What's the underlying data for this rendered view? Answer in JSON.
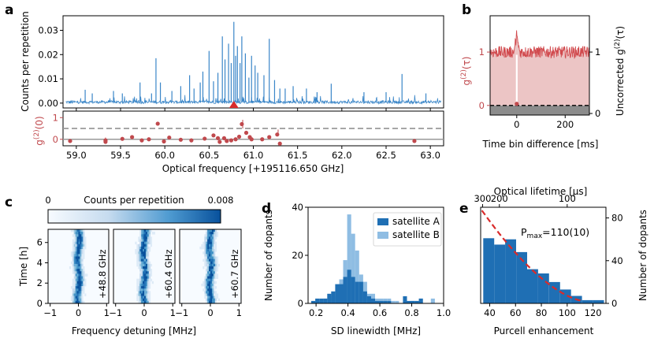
{
  "panels": {
    "a": "a",
    "b": "b",
    "c": "c",
    "d": "d",
    "e": "e"
  },
  "chart_data": [
    {
      "id": "a-top",
      "type": "line",
      "ylabel": "Counts per repetition",
      "ylim": [
        -0.002,
        0.036
      ],
      "xlim": [
        58.85,
        63.15
      ],
      "yticks": [
        "0.00",
        "0.01",
        "0.02",
        "0.03"
      ],
      "yticks_values": [
        0,
        0.01,
        0.02,
        0.03
      ],
      "color": "#3a86c8",
      "marker_x": 60.78,
      "peaks": [
        [
          59.1,
          0.0055
        ],
        [
          59.18,
          0.004
        ],
        [
          59.42,
          0.005
        ],
        [
          59.52,
          0.004
        ],
        [
          59.72,
          0.0085
        ],
        [
          59.85,
          0.004
        ],
        [
          59.9,
          0.0185
        ],
        [
          59.95,
          0.0085
        ],
        [
          60.08,
          0.005
        ],
        [
          60.18,
          0.007
        ],
        [
          60.28,
          0.0115
        ],
        [
          60.33,
          0.006
        ],
        [
          60.4,
          0.0085
        ],
        [
          60.43,
          0.013
        ],
        [
          60.5,
          0.0215
        ],
        [
          60.55,
          0.009
        ],
        [
          60.6,
          0.0125
        ],
        [
          60.65,
          0.0275
        ],
        [
          60.68,
          0.018
        ],
        [
          60.72,
          0.0245
        ],
        [
          60.75,
          0.0165
        ],
        [
          60.78,
          0.0335
        ],
        [
          60.8,
          0.0195
        ],
        [
          60.82,
          0.0235
        ],
        [
          60.85,
          0.0165
        ],
        [
          60.87,
          0.0275
        ],
        [
          60.91,
          0.0205
        ],
        [
          60.95,
          0.0105
        ],
        [
          60.98,
          0.0195
        ],
        [
          61.02,
          0.0155
        ],
        [
          61.05,
          0.0125
        ],
        [
          61.12,
          0.0115
        ],
        [
          61.18,
          0.0265
        ],
        [
          61.24,
          0.0095
        ],
        [
          61.3,
          0.006
        ],
        [
          61.36,
          0.006
        ],
        [
          61.45,
          0.007
        ],
        [
          61.6,
          0.006
        ],
        [
          61.72,
          0.0045
        ],
        [
          61.88,
          0.008
        ],
        [
          62.25,
          0.0045
        ],
        [
          62.5,
          0.0045
        ],
        [
          62.68,
          0.012
        ],
        [
          62.95,
          0.004
        ]
      ]
    },
    {
      "id": "a-bottom",
      "type": "scatter",
      "ylabel": "g(2)(0)",
      "xlabel": "Optical frequency [+195116.650 GHz]",
      "xlim": [
        58.85,
        63.15
      ],
      "ylim": [
        -0.3,
        1.3
      ],
      "xticks": [
        "59.0",
        "59.5",
        "60.0",
        "60.5",
        "61.0",
        "61.5",
        "62.0",
        "62.5",
        "63.0"
      ],
      "xticks_values": [
        59.0,
        59.5,
        60.0,
        60.5,
        61.0,
        61.5,
        62.0,
        62.5,
        63.0
      ],
      "yticks": [
        "0",
        "1"
      ],
      "yticks_values": [
        0,
        1
      ],
      "dashed_line": 0.5,
      "solid_line": 0,
      "points": [
        [
          58.93,
          -0.08
        ],
        [
          59.33,
          -0.12
        ],
        [
          59.33,
          -0.05
        ],
        [
          59.52,
          0.02
        ],
        [
          59.63,
          0.1
        ],
        [
          59.74,
          -0.05
        ],
        [
          59.82,
          0.0
        ],
        [
          59.92,
          0.72
        ],
        [
          59.99,
          -0.1
        ],
        [
          60.05,
          0.08
        ],
        [
          60.18,
          -0.02
        ],
        [
          60.3,
          -0.05
        ],
        [
          60.45,
          0.03
        ],
        [
          60.55,
          0.18
        ],
        [
          60.6,
          0.05
        ],
        [
          60.62,
          -0.12
        ],
        [
          60.67,
          0.05
        ],
        [
          60.7,
          -0.08
        ],
        [
          60.75,
          -0.05
        ],
        [
          60.8,
          0.0
        ],
        [
          60.84,
          0.12
        ],
        [
          60.87,
          0.7
        ],
        [
          60.92,
          0.3
        ],
        [
          60.96,
          0.1
        ],
        [
          60.98,
          0.0
        ],
        [
          61.1,
          0.0
        ],
        [
          61.18,
          0.1
        ],
        [
          61.27,
          0.22
        ],
        [
          61.3,
          -0.2
        ],
        [
          62.82,
          -0.08
        ]
      ],
      "err": [
        [
          59.33,
          -0.2,
          0.08
        ],
        [
          61.28,
          0.2,
          0.45
        ],
        [
          60.88,
          0.5,
          0.9
        ]
      ]
    },
    {
      "id": "b",
      "type": "line",
      "xlabel": "Time bin difference [ms]",
      "ylabel_left": "g(2)(τ)",
      "ylabel_right": "Uncorrected g(2)(τ)",
      "xlim": [
        -110,
        300
      ],
      "ylim": [
        -0.18,
        1.68
      ],
      "xticks": [
        "0",
        "200"
      ],
      "xticks_values": [
        0,
        200
      ],
      "yticks_left": [
        "0",
        "1"
      ],
      "yticks_right": [
        "0",
        "1"
      ],
      "baseline": 1.0,
      "center_peak": 1.3
    },
    {
      "id": "c",
      "type": "heatmap",
      "colorbar_label": "Counts per repetition",
      "colorbar_min": "0",
      "colorbar_max": "0.008",
      "ylabel": "Time [h]",
      "xlabel": "Frequency detuning [MHz]",
      "yticks": [
        "0",
        "2",
        "4",
        "6"
      ],
      "xticks": [
        "−1",
        "0",
        "1"
      ],
      "subpanels": [
        "+48.8 GHz",
        "+60.4 GHz",
        "+60.7 GHz"
      ],
      "ylim": [
        0,
        7.3
      ]
    },
    {
      "id": "d",
      "type": "bar",
      "xlabel": "SD linewidth [MHz]",
      "ylabel": "Number of dopants",
      "xlim": [
        0.15,
        1.0
      ],
      "ylim": [
        0,
        40
      ],
      "xticks": [
        "0.2",
        "0.4",
        "0.6",
        "0.8",
        "1.0"
      ],
      "xticks_values": [
        0.2,
        0.4,
        0.6,
        0.8,
        1.0
      ],
      "yticks": [
        "0",
        "20",
        "40"
      ],
      "yticks_values": [
        0,
        20,
        40
      ],
      "bin_start": 0.17,
      "bin_width": 0.025,
      "series": [
        {
          "name": "satellite A",
          "color": "#1f6fb4",
          "values": [
            1,
            2,
            2,
            2,
            4,
            5,
            8,
            8,
            11,
            14,
            11,
            9,
            9,
            5,
            3,
            2,
            1,
            1,
            1,
            1,
            0,
            0,
            0,
            3,
            1,
            1,
            1,
            2,
            0,
            0,
            0,
            0,
            0
          ]
        },
        {
          "name": "satellite B",
          "color": "#8fbde3",
          "values": [
            0,
            1,
            1,
            2,
            2,
            3,
            5,
            10,
            18,
            37,
            29,
            22,
            12,
            9,
            4,
            4,
            2,
            2,
            2,
            2,
            1,
            1,
            0,
            1,
            0,
            1,
            0,
            2,
            0,
            0,
            2,
            0,
            0
          ]
        }
      ]
    },
    {
      "id": "e",
      "type": "bar",
      "xlabel": "Purcell enhancement",
      "ylabel": "Number of dopants",
      "top_xlabel": "Optical lifetime [µs]",
      "xlim": [
        33,
        130
      ],
      "ylim": [
        0,
        90
      ],
      "xticks": [
        "40",
        "60",
        "80",
        "100",
        "120"
      ],
      "xticks_values": [
        40,
        60,
        80,
        100,
        120
      ],
      "yticks": [
        "0",
        "40",
        "80"
      ],
      "yticks_values": [
        0,
        40,
        80
      ],
      "top_xticks": [
        "300",
        "200",
        "100"
      ],
      "top_xticks_values": [
        34.5,
        47.5,
        100
      ],
      "annotation": "Pmax=110(10)",
      "annotation_main": "P",
      "annotation_sub": "max",
      "annotation_rest": "=110(10)",
      "bin_start": 35,
      "bin_width": 8.5,
      "values": [
        61,
        55,
        60,
        48,
        32,
        28,
        20,
        13,
        7,
        3,
        3
      ],
      "color": "#1f6fb4",
      "fit_color": "#d92b2b"
    }
  ]
}
